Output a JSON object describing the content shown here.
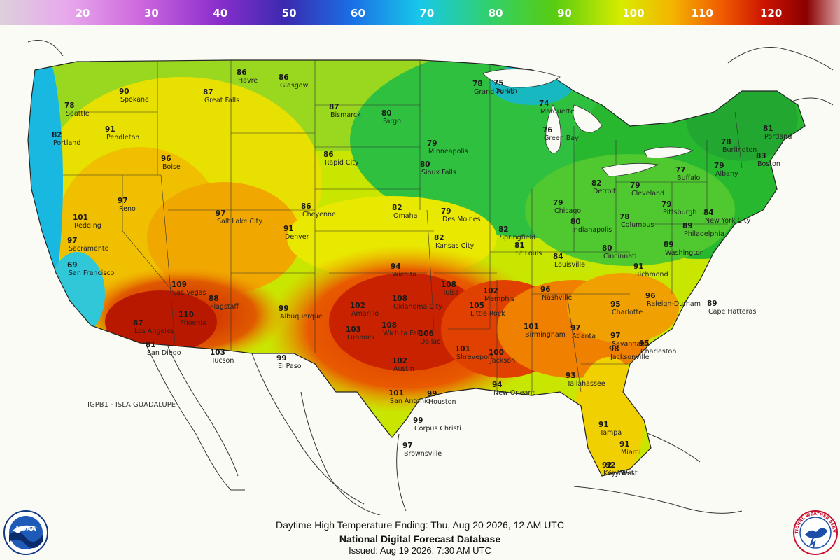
{
  "legend": {
    "ticks": [
      {
        "value": 20,
        "label": "20"
      },
      {
        "value": 30,
        "label": "30"
      },
      {
        "value": 40,
        "label": "40"
      },
      {
        "value": 50,
        "label": "50"
      },
      {
        "value": 60,
        "label": "60"
      },
      {
        "value": 70,
        "label": "70"
      },
      {
        "value": 80,
        "label": "80"
      },
      {
        "value": 90,
        "label": "90"
      },
      {
        "value": 100,
        "label": "100"
      },
      {
        "value": 110,
        "label": "110"
      },
      {
        "value": 120,
        "label": "120"
      }
    ],
    "colors": [
      "#d9c8d6",
      "#e8a8e8",
      "#d070e0",
      "#9040d0",
      "#4030b0",
      "#1070e0",
      "#10c8e8",
      "#30d878",
      "#60d010",
      "#e0f000",
      "#f0b000",
      "#f06000",
      "#d01000",
      "#900000",
      "#c88888"
    ]
  },
  "map": {
    "offshore_label": "IGPB1 - ISLA GUADALUPE",
    "cities": [
      {
        "name": "Havre",
        "temp": "86"
      },
      {
        "name": "Glasgow",
        "temp": "86"
      },
      {
        "name": "Great Falls",
        "temp": "87"
      },
      {
        "name": "Spokane",
        "temp": "90"
      },
      {
        "name": "Seattle",
        "temp": "78"
      },
      {
        "name": "Portland",
        "temp": "82"
      },
      {
        "name": "Pendleton",
        "temp": "91"
      },
      {
        "name": "Boise",
        "temp": "96"
      },
      {
        "name": "Salt Lake City",
        "temp": "97"
      },
      {
        "name": "Reno",
        "temp": "97"
      },
      {
        "name": "Redding",
        "temp": "101"
      },
      {
        "name": "Sacramento",
        "temp": "97"
      },
      {
        "name": "San Francisco",
        "temp": "69"
      },
      {
        "name": "Los Angeles",
        "temp": "87"
      },
      {
        "name": "San Diego",
        "temp": "81"
      },
      {
        "name": "Las Vegas",
        "temp": "109"
      },
      {
        "name": "Phoenix",
        "temp": "110"
      },
      {
        "name": "Tucson",
        "temp": "103"
      },
      {
        "name": "Flagstaff",
        "temp": "88"
      },
      {
        "name": "Albuquerque",
        "temp": "99"
      },
      {
        "name": "El Paso",
        "temp": "99"
      },
      {
        "name": "Denver",
        "temp": "91"
      },
      {
        "name": "Cheyenne",
        "temp": "86"
      },
      {
        "name": "Rapid City",
        "temp": "86"
      },
      {
        "name": "Bismarck",
        "temp": "87"
      },
      {
        "name": "Fargo",
        "temp": "80"
      },
      {
        "name": "Minneapolis",
        "temp": "79"
      },
      {
        "name": "Des Moines",
        "temp": "79"
      },
      {
        "name": "Omaha",
        "temp": "82"
      },
      {
        "name": "Wichita",
        "temp": "94"
      },
      {
        "name": "Kansas City",
        "temp": "82"
      },
      {
        "name": "Amarillo",
        "temp": "102"
      },
      {
        "name": "Lubbock",
        "temp": "103"
      },
      {
        "name": "Wichita Falls",
        "temp": "108"
      },
      {
        "name": "Dallas",
        "temp": "106"
      },
      {
        "name": "Oklahoma City",
        "temp": "108"
      },
      {
        "name": "Tulsa",
        "temp": "108"
      },
      {
        "name": "Little Rock",
        "temp": "105"
      },
      {
        "name": "Shreveport",
        "temp": "101"
      },
      {
        "name": "Houston",
        "temp": "99"
      },
      {
        "name": "San Antonio",
        "temp": "101"
      },
      {
        "name": "Austin",
        "temp": "102"
      },
      {
        "name": "Corpus Christi",
        "temp": "99"
      },
      {
        "name": "Brownsville",
        "temp": "97"
      },
      {
        "name": "New Orleans",
        "temp": "94"
      },
      {
        "name": "Jackson",
        "temp": "100"
      },
      {
        "name": "Memphis",
        "temp": "102"
      },
      {
        "name": "Nashville",
        "temp": "96"
      },
      {
        "name": "Birmingham",
        "temp": "101"
      },
      {
        "name": "Atlanta",
        "temp": "97"
      },
      {
        "name": "Tallahassee",
        "temp": "93"
      },
      {
        "name": "Tampa",
        "temp": "91"
      },
      {
        "name": "Miami",
        "temp": "91"
      },
      {
        "name": "Key West",
        "temp": "92"
      },
      {
        "name": "Jacksonville",
        "temp": "98"
      },
      {
        "name": "Savannah",
        "temp": "97"
      },
      {
        "name": "Charleston",
        "temp": "95"
      },
      {
        "name": "Charlotte",
        "temp": "95"
      },
      {
        "name": "Raleigh-Durham",
        "temp": "96"
      },
      {
        "name": "Richmond",
        "temp": "91"
      },
      {
        "name": "Washington",
        "temp": "89"
      },
      {
        "name": "Philadelphia",
        "temp": "89"
      },
      {
        "name": "New York City",
        "temp": "84"
      },
      {
        "name": "Boston",
        "temp": "83"
      },
      {
        "name": "Portland",
        "temp": "81"
      },
      {
        "name": "Burlington",
        "temp": "78"
      },
      {
        "name": "Albany",
        "temp": "79"
      },
      {
        "name": "Buffalo",
        "temp": "77"
      },
      {
        "name": "Pittsburgh",
        "temp": "79"
      },
      {
        "name": "Cleveland",
        "temp": "79"
      },
      {
        "name": "Detroit",
        "temp": "82"
      },
      {
        "name": "Chicago",
        "temp": "79"
      },
      {
        "name": "Indianapolis",
        "temp": "80"
      },
      {
        "name": "Columbus",
        "temp": "78"
      },
      {
        "name": "Cincinnati",
        "temp": "80"
      },
      {
        "name": "Louisville",
        "temp": "84"
      },
      {
        "name": "St Louis",
        "temp": "81"
      },
      {
        "name": "Springfield",
        "temp": "82"
      },
      {
        "name": "Marquette",
        "temp": "74"
      },
      {
        "name": "Duluth",
        "temp": "75"
      },
      {
        "name": "Green Bay",
        "temp": "76"
      },
      {
        "name": "Grand Forks",
        "temp": "78"
      },
      {
        "name": "Sioux Falls",
        "temp": "80"
      },
      {
        "name": "Cape Hatteras",
        "temp": "89"
      },
      {
        "name": "Key West",
        "temp": "92"
      }
    ]
  },
  "footer": {
    "line1": "Daytime High Temperature Ending: Thu, Aug 20 2026, 12 AM UTC",
    "line2": "National Digital Forecast Database",
    "line3": "Issued: Aug 19 2026, 7:30 AM UTC"
  },
  "logos": {
    "noaa_text": "NOAA",
    "nws_text": "NATIONAL WEATHER SERVICE"
  }
}
